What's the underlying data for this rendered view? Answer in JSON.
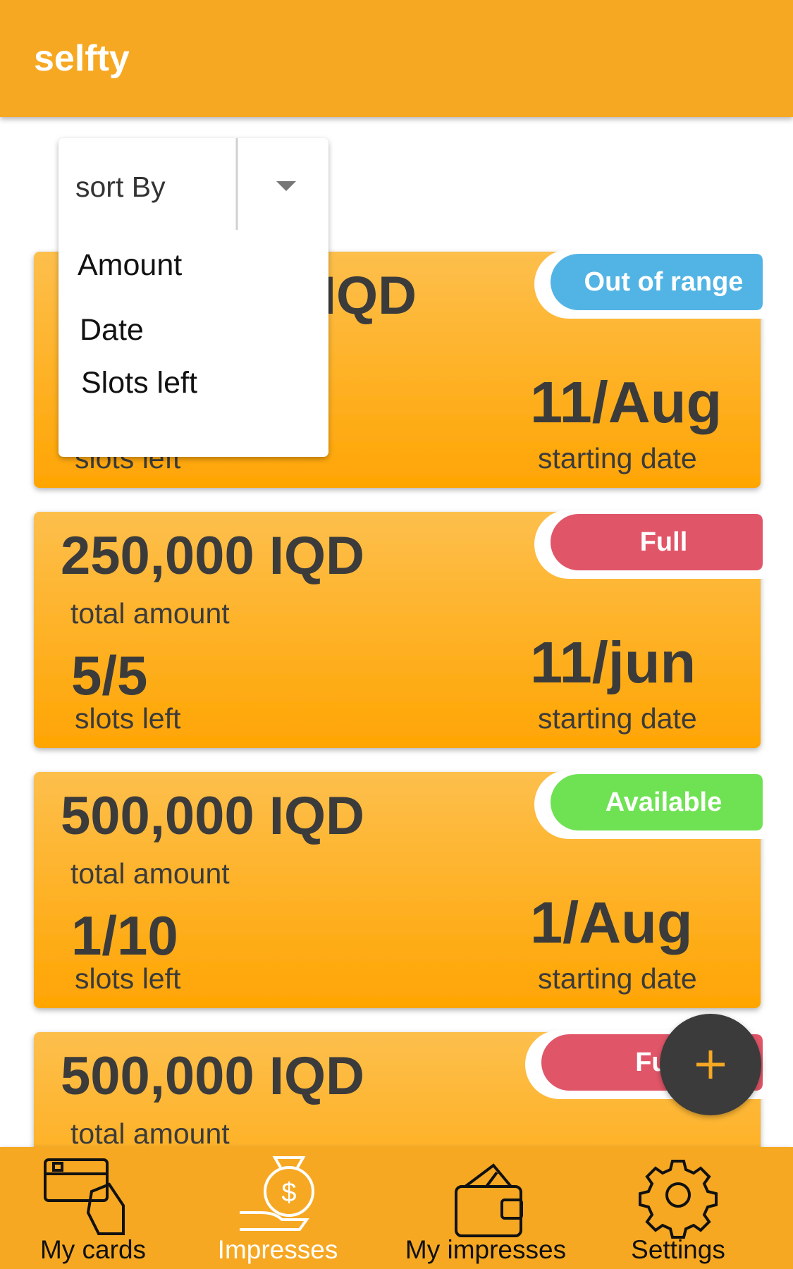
{
  "app_bar": {
    "title": "selfty"
  },
  "sort": {
    "label": "sort By",
    "options": [
      "Amount",
      "Date",
      "Slots left"
    ]
  },
  "cards": [
    {
      "amount": "IQD",
      "slots_label": "slots left",
      "date": "11/Aug",
      "date_label": "starting date",
      "status": "Out of range"
    },
    {
      "amount": "250,000 IQD",
      "amount_label": "total amount",
      "slots": "5/5",
      "slots_label": "slots left",
      "date": "11/jun",
      "date_label": "starting date",
      "status": "Full"
    },
    {
      "amount": "500,000 IQD",
      "amount_label": "total amount",
      "slots": "1/10",
      "slots_label": "slots left",
      "date": "1/Aug",
      "date_label": "starting date",
      "status": "Available"
    },
    {
      "amount": "500,000 IQD",
      "amount_label": "total amount",
      "status": "Full"
    }
  ],
  "nav": [
    "My cards",
    "Impresses",
    "My impresses",
    "Settings"
  ]
}
